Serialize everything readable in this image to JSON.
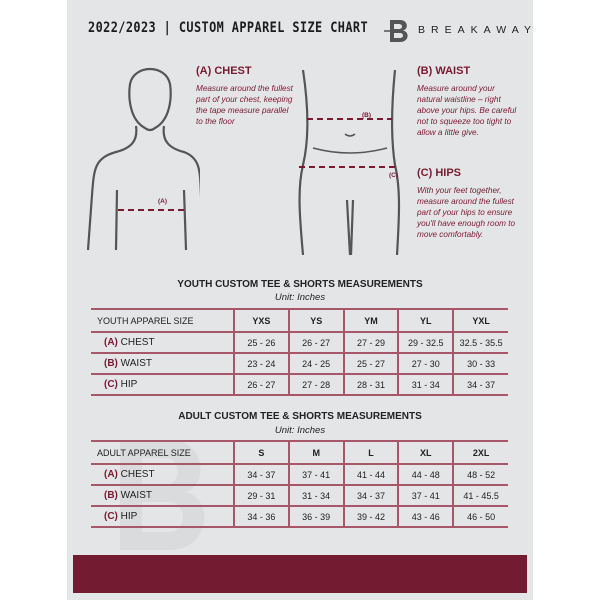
{
  "header": {
    "title": "2022/2023  |  CUSTOM APPAREL SIZE CHART",
    "brand": "BREAKAWAY",
    "logo_letter": "B"
  },
  "sections": {
    "chest": {
      "heading": "(A) CHEST",
      "text": "Measure around the fullest part of your chest, keeping the tape measure parallel to the floor",
      "marker": "(A)"
    },
    "waist": {
      "heading": "(B) WAIST",
      "text": "Measure around your natural waistline – right above your hips. Be careful not to squeeze too tight to allow a little give.",
      "marker": "(B)"
    },
    "hips": {
      "heading": "(C) HIPS",
      "text": "With your feet together, measure around the fullest part of your hips to ensure you'll have enough room to move comfortably.",
      "marker": "(C)"
    }
  },
  "youth": {
    "title": "YOUTH CUSTOM TEE & SHORTS MEASUREMENTS",
    "unit": "Unit: Inches",
    "header": [
      "YOUTH APPAREL SIZE",
      "YXS",
      "YS",
      "YM",
      "YL",
      "YXL"
    ],
    "rows": [
      {
        "letter": "(A)",
        "name": "CHEST",
        "values": [
          "25 - 26",
          "26 - 27",
          "27 - 29",
          "29 - 32.5",
          "32.5 - 35.5"
        ]
      },
      {
        "letter": "(B)",
        "name": "WAIST",
        "values": [
          "23 - 24",
          "24 - 25",
          "25 - 27",
          "27 - 30",
          "30 - 33"
        ]
      },
      {
        "letter": "(C)",
        "name": "HIP",
        "values": [
          "26 - 27",
          "27 - 28",
          "28 - 31",
          "31 - 34",
          "34 - 37"
        ]
      }
    ]
  },
  "adult": {
    "title": "ADULT CUSTOM TEE & SHORTS MEASUREMENTS",
    "unit": "Unit: Inches",
    "header": [
      "ADULT APPAREL SIZE",
      "S",
      "M",
      "L",
      "XL",
      "2XL"
    ],
    "rows": [
      {
        "letter": "(A)",
        "name": "CHEST",
        "values": [
          "34 - 37",
          "37 - 41",
          "41 - 44",
          "44 - 48",
          "48 - 52"
        ]
      },
      {
        "letter": "(B)",
        "name": "WAIST",
        "values": [
          "29 - 31",
          "31 - 34",
          "34 - 37",
          "37 - 41",
          "41 - 45.5"
        ]
      },
      {
        "letter": "(C)",
        "name": "HIP",
        "values": [
          "34 - 36",
          "36 - 39",
          "39 - 42",
          "43 - 46",
          "46 - 50"
        ]
      }
    ]
  },
  "colors": {
    "accent": "#731c31",
    "panel": "#e4e5e7"
  }
}
